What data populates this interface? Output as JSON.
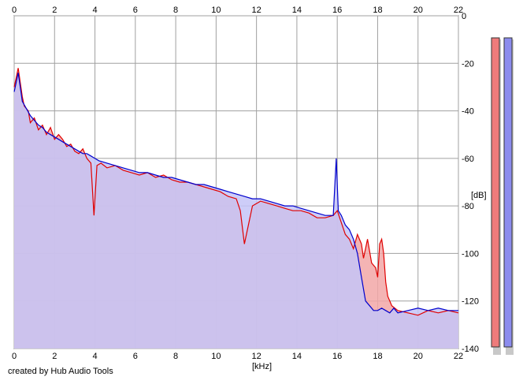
{
  "chart_data": {
    "type": "area",
    "xlabel": "[kHz]",
    "ylabel": "[dB]",
    "xlim": [
      0,
      22
    ],
    "ylim": [
      -140,
      0
    ],
    "xticks": [
      0,
      2,
      4,
      6,
      8,
      10,
      12,
      14,
      16,
      18,
      20,
      22
    ],
    "yticks": [
      0,
      -20,
      -40,
      -60,
      -80,
      -100,
      -120,
      -140
    ],
    "grid": true,
    "series": [
      {
        "color": "#e00000",
        "fill": "#f2a7a7",
        "x": [
          0,
          0.1,
          0.2,
          0.3,
          0.4,
          0.5,
          0.7,
          0.8,
          1.0,
          1.2,
          1.4,
          1.6,
          1.8,
          2.0,
          2.2,
          2.4,
          2.6,
          2.8,
          3.0,
          3.2,
          3.4,
          3.6,
          3.8,
          3.95,
          4.1,
          4.3,
          4.6,
          5.0,
          5.4,
          5.8,
          6.2,
          6.6,
          7.0,
          7.4,
          7.8,
          8.2,
          8.6,
          9.0,
          9.4,
          9.8,
          10.2,
          10.6,
          11.0,
          11.2,
          11.4,
          11.8,
          12.2,
          12.6,
          13.0,
          13.4,
          13.8,
          14.2,
          14.6,
          15.0,
          15.4,
          15.8,
          16.0,
          16.2,
          16.4,
          16.6,
          16.8,
          17.0,
          17.2,
          17.3,
          17.5,
          17.7,
          17.9,
          18.0,
          18.1,
          18.2,
          18.3,
          18.4,
          18.5,
          18.7,
          19.0,
          19.5,
          20.0,
          20.5,
          21.0,
          21.5,
          22.0
        ],
        "y": [
          -30,
          -26,
          -22,
          -28,
          -34,
          -38,
          -40,
          -45,
          -43,
          -48,
          -46,
          -50,
          -47,
          -52,
          -50,
          -52,
          -55,
          -54,
          -57,
          -58,
          -56,
          -60,
          -62,
          -84,
          -63,
          -62,
          -64,
          -63,
          -65,
          -66,
          -67,
          -66,
          -68,
          -67,
          -69,
          -70,
          -70,
          -71,
          -72,
          -73,
          -74,
          -76,
          -77,
          -82,
          -96,
          -80,
          -78,
          -79,
          -80,
          -81,
          -82,
          -82,
          -83,
          -85,
          -85,
          -84,
          -82,
          -87,
          -92,
          -94,
          -98,
          -92,
          -96,
          -102,
          -94,
          -104,
          -106,
          -110,
          -96,
          -94,
          -100,
          -112,
          -118,
          -122,
          -124,
          -125,
          -126,
          -124,
          -125,
          -124,
          -125
        ]
      },
      {
        "color": "#0000cc",
        "fill": "#c4c4f7",
        "x": [
          0,
          0.1,
          0.2,
          0.3,
          0.4,
          0.6,
          0.8,
          1.0,
          1.2,
          1.4,
          1.6,
          1.8,
          2.0,
          2.2,
          2.4,
          2.6,
          2.8,
          3.0,
          3.2,
          3.4,
          3.6,
          3.8,
          4.0,
          4.2,
          4.6,
          5.0,
          5.4,
          5.8,
          6.2,
          6.6,
          7.0,
          7.4,
          7.8,
          8.2,
          8.6,
          9.0,
          9.4,
          9.8,
          10.2,
          10.6,
          11.0,
          11.4,
          11.8,
          12.2,
          12.6,
          13.0,
          13.4,
          13.8,
          14.2,
          14.6,
          15.0,
          15.4,
          15.8,
          15.95,
          16.05,
          16.2,
          16.4,
          16.6,
          16.8,
          17.0,
          17.2,
          17.4,
          17.6,
          17.8,
          18.0,
          18.2,
          18.4,
          18.6,
          18.8,
          19.0,
          19.5,
          20.0,
          20.5,
          21.0,
          21.5,
          22.0
        ],
        "y": [
          -32,
          -28,
          -24,
          -30,
          -36,
          -39,
          -42,
          -44,
          -46,
          -47,
          -49,
          -50,
          -51,
          -52,
          -53,
          -54,
          -55,
          -56,
          -57,
          -58,
          -58,
          -59,
          -60,
          -61,
          -62,
          -63,
          -64,
          -65,
          -66,
          -66,
          -67,
          -68,
          -68,
          -69,
          -70,
          -71,
          -71,
          -72,
          -73,
          -74,
          -75,
          -76,
          -77,
          -77,
          -78,
          -79,
          -80,
          -80,
          -81,
          -82,
          -83,
          -84,
          -84,
          -60,
          -82,
          -84,
          -88,
          -90,
          -94,
          -100,
          -110,
          -120,
          -122,
          -124,
          -124,
          -123,
          -124,
          -125,
          -123,
          -125,
          -124,
          -123,
          -124,
          -123,
          -124,
          -124
        ]
      }
    ]
  },
  "axis_unit_x": "[kHz]",
  "axis_unit_y": "[dB]",
  "credit": "created by Hub Audio Tools",
  "meters": [
    {
      "channel_color": "#ee7b7b"
    },
    {
      "channel_color": "#8c8cee"
    }
  ]
}
